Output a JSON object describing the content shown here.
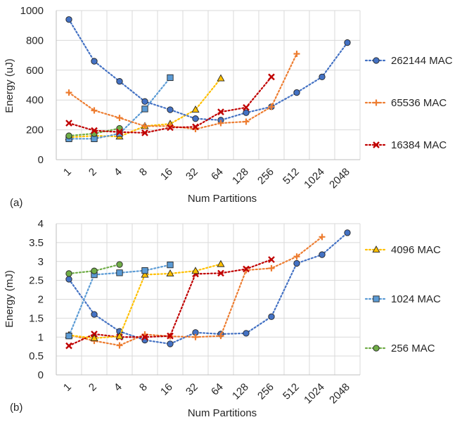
{
  "chart_data": [
    {
      "panel_label": "(a)",
      "type": "line",
      "xlabel": "Num Partitions",
      "ylabel": "Energy (uJ)",
      "ylim": [
        0,
        1000
      ],
      "yticks": [
        "0",
        "200",
        "400",
        "600",
        "800",
        "1000"
      ],
      "grid": true,
      "legend_position": "right",
      "categories": [
        "1",
        "2",
        "4",
        "8",
        "16",
        "32",
        "64",
        "128",
        "256",
        "512",
        "1024",
        "2048"
      ],
      "series": [
        {
          "name": "4096 MAC",
          "in_legend": false,
          "marker": "triangle",
          "color": "#ffc000",
          "values": [
            150,
            160,
            155,
            225,
            240,
            335,
            545,
            null,
            null,
            null,
            null,
            null
          ]
        },
        {
          "name": "1024 MAC",
          "in_legend": false,
          "marker": "square",
          "color": "#5b9bd5",
          "values": [
            140,
            140,
            175,
            340,
            550,
            null,
            null,
            null,
            null,
            null,
            null,
            null
          ]
        },
        {
          "name": "256 MAC",
          "in_legend": false,
          "marker": "circle",
          "color": "#70ad47",
          "values": [
            160,
            175,
            210,
            null,
            null,
            null,
            null,
            null,
            null,
            null,
            null,
            null
          ]
        },
        {
          "name": "262144 MAC",
          "in_legend": true,
          "marker": "circle",
          "color": "#4472c4",
          "values": [
            940,
            660,
            525,
            390,
            335,
            275,
            265,
            315,
            355,
            450,
            555,
            785
          ]
        },
        {
          "name": "65536 MAC",
          "in_legend": true,
          "marker": "plus",
          "color": "#ed7d31",
          "values": [
            450,
            330,
            280,
            225,
            225,
            205,
            245,
            255,
            355,
            710,
            null,
            null
          ]
        },
        {
          "name": "16384 MAC",
          "in_legend": true,
          "marker": "x",
          "color": "#c00000",
          "values": [
            245,
            195,
            185,
            180,
            215,
            220,
            320,
            350,
            555,
            null,
            null,
            null
          ]
        }
      ]
    },
    {
      "panel_label": "(b)",
      "type": "line",
      "xlabel": "Num Partitions",
      "ylabel": "Energy (mJ)",
      "ylim": [
        0,
        4
      ],
      "yticks": [
        "0",
        "0.5",
        "1",
        "1.5",
        "2",
        "2.5",
        "3",
        "3.5",
        "4"
      ],
      "grid": true,
      "legend_position": "right",
      "categories": [
        "1",
        "2",
        "4",
        "8",
        "16",
        "32",
        "64",
        "128",
        "256",
        "512",
        "1024",
        "2048"
      ],
      "series": [
        {
          "name": "262144 MAC",
          "in_legend": false,
          "marker": "circle",
          "color": "#4472c4",
          "values": [
            2.53,
            1.6,
            1.15,
            0.92,
            0.82,
            1.12,
            1.08,
            1.1,
            1.54,
            2.95,
            3.18,
            3.76
          ]
        },
        {
          "name": "65536 MAC",
          "in_legend": false,
          "marker": "plus",
          "color": "#ed7d31",
          "values": [
            1.06,
            0.9,
            0.78,
            1.07,
            1.02,
            1.0,
            1.03,
            2.77,
            2.82,
            3.13,
            3.65,
            null
          ]
        },
        {
          "name": "16384 MAC",
          "in_legend": false,
          "marker": "x",
          "color": "#c00000",
          "values": [
            0.77,
            1.08,
            1.0,
            1.0,
            1.03,
            2.67,
            2.69,
            2.8,
            3.05,
            null,
            null,
            null
          ]
        },
        {
          "name": "4096 MAC",
          "in_legend": true,
          "marker": "triangle",
          "color": "#ffc000",
          "values": [
            1.05,
            0.97,
            1.02,
            2.65,
            2.68,
            2.75,
            2.93,
            null,
            null,
            null,
            null,
            null
          ]
        },
        {
          "name": "1024 MAC",
          "in_legend": true,
          "marker": "square",
          "color": "#5b9bd5",
          "values": [
            1.03,
            2.65,
            2.7,
            2.76,
            2.91,
            null,
            null,
            null,
            null,
            null,
            null,
            null
          ]
        },
        {
          "name": "256 MAC",
          "in_legend": true,
          "marker": "circle",
          "color": "#70ad47",
          "values": [
            2.68,
            2.75,
            2.92,
            null,
            null,
            null,
            null,
            null,
            null,
            null,
            null,
            null
          ]
        }
      ]
    }
  ],
  "style": {
    "grid_color": "#d9d9d9",
    "axis_color": "#bfbfbf",
    "marker_outline": "#262626"
  }
}
